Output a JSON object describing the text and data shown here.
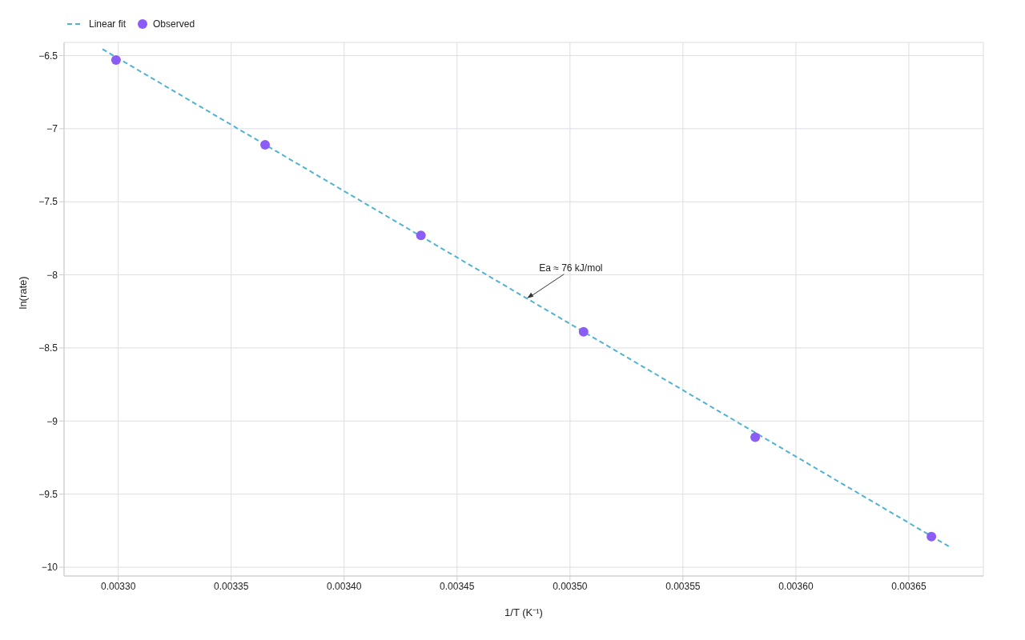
{
  "chart_data": {
    "type": "scatter",
    "xlabel": "1/T (K⁻¹)",
    "ylabel": "ln(rate)",
    "series": [
      {
        "name": "Linear fit",
        "type": "line",
        "color": "#4fb3d1",
        "line_style": "dashed",
        "marker": "none",
        "x": [
          0.003293,
          0.003668
        ],
        "values": [
          -6.456,
          -9.86
        ]
      },
      {
        "name": "Observed",
        "color": "#8b5cf6",
        "marker": "circle",
        "x": [
          0.003299,
          0.003365,
          0.003434,
          0.003506,
          0.003582,
          0.00366
        ],
        "values": [
          -6.53,
          -7.11,
          -7.73,
          -8.39,
          -9.11,
          -9.79
        ]
      }
    ],
    "xlim": [
      0.003276,
      0.003683
    ],
    "xticks": [
      {
        "value": 0.0033,
        "label": "0.00330"
      },
      {
        "value": 0.00335,
        "label": "0.00335"
      },
      {
        "value": 0.0034,
        "label": "0.00340"
      },
      {
        "value": 0.00345,
        "label": "0.00345"
      },
      {
        "value": 0.0035,
        "label": "0.00350"
      },
      {
        "value": 0.00355,
        "label": "0.00355"
      },
      {
        "value": 0.0036,
        "label": "0.00360"
      },
      {
        "value": 0.00365,
        "label": "0.00365"
      }
    ],
    "ylim": [
      -10.06,
      -6.41
    ],
    "yticks": [
      {
        "value": -6.5,
        "label": "−6.5"
      },
      {
        "value": -7,
        "label": "−7"
      },
      {
        "value": -7.5,
        "label": "−7.5"
      },
      {
        "value": -8,
        "label": "−8"
      },
      {
        "value": -8.5,
        "label": "−8.5"
      },
      {
        "value": -9,
        "label": "−9"
      },
      {
        "value": -9.5,
        "label": "−9.5"
      },
      {
        "value": -10,
        "label": "−10"
      }
    ],
    "grid": true,
    "legend": "top left",
    "annotations": [
      {
        "text": "Ea ≈ 76 kJ/mol",
        "x": 0.003481,
        "y": -8.16
      }
    ]
  }
}
